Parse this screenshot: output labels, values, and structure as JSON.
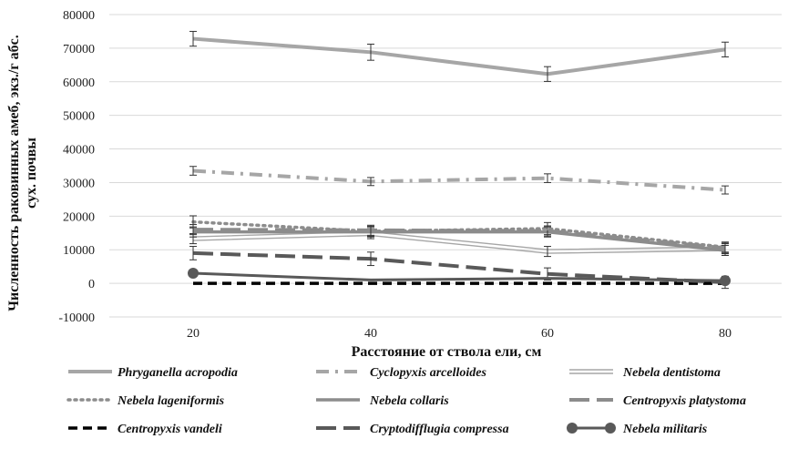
{
  "chart_data": {
    "type": "line",
    "xlabel": "Расстояние от ствола ели, см",
    "ylabel": "Численность раковинных амеб, экз./г абс. сух. почвы",
    "x": [
      20,
      40,
      60,
      80
    ],
    "ylim": [
      -10000,
      80000
    ],
    "yticks": [
      -10000,
      0,
      10000,
      20000,
      30000,
      40000,
      50000,
      60000,
      70000,
      80000
    ],
    "grid": "horizontal",
    "legend": "bottom",
    "series": [
      {
        "name": "Phryganella acropodia",
        "values": [
          72800,
          68800,
          62300,
          69600
        ],
        "errors": [
          2200,
          2400,
          2200,
          2200
        ],
        "color": "#a6a6a6",
        "style": "solid-thick"
      },
      {
        "name": "Cyclopyxis arcelloides",
        "values": [
          33500,
          30300,
          31300,
          27800
        ],
        "errors": [
          1300,
          1200,
          1300,
          1200
        ],
        "color": "#a6a6a6",
        "style": "dash-dot"
      },
      {
        "name": "Nebela dentistoma",
        "values": [
          13300,
          14800,
          9500,
          10300
        ],
        "errors": [
          1500,
          1500,
          1500,
          1500
        ],
        "color": "#a6a6a6",
        "style": "double"
      },
      {
        "name": "Nebela lageniformis",
        "values": [
          18300,
          15500,
          16300,
          10800
        ],
        "errors": [
          1800,
          1500,
          1800,
          1500
        ],
        "color": "#8c8c8c",
        "style": "dotted"
      },
      {
        "name": "Nebela collaris",
        "values": [
          15300,
          15300,
          15300,
          9800
        ],
        "errors": [
          1500,
          1500,
          1500,
          1500
        ],
        "color": "#8c8c8c",
        "style": "solid-medium"
      },
      {
        "name": "Centropyxis platystoma",
        "values": [
          16000,
          15800,
          15600,
          10500
        ],
        "errors": [
          1500,
          1500,
          1500,
          1500
        ],
        "color": "#8c8c8c",
        "style": "long-dash"
      },
      {
        "name": "Centropyxis vandeli",
        "values": [
          0,
          0,
          0,
          0
        ],
        "errors": [
          0,
          0,
          0,
          0
        ],
        "color": "#000000",
        "style": "dash-black"
      },
      {
        "name": "Cryptodifflugia compressa",
        "values": [
          9000,
          7300,
          2800,
          300
        ],
        "errors": [
          2000,
          2000,
          1800,
          1800
        ],
        "color": "#595959",
        "style": "long-dash-dark"
      },
      {
        "name": "Nebela militaris",
        "values": [
          3000,
          1000,
          1500,
          800
        ],
        "errors": [
          0,
          0,
          0,
          0
        ],
        "color": "#595959",
        "style": "solid-marker"
      }
    ]
  }
}
